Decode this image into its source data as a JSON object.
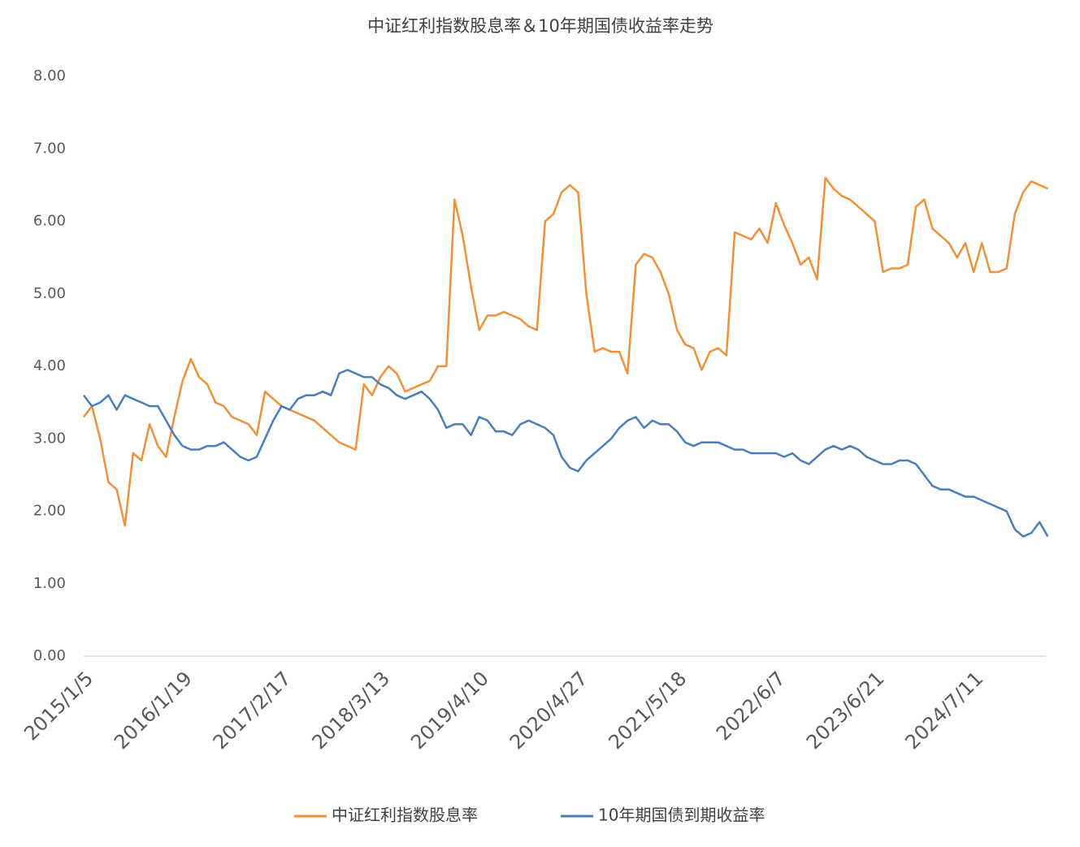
{
  "chart_data": {
    "type": "line",
    "title": "中证红利指数股息率＆10年期国债收益率走势",
    "categories": [
      "2015/1/5",
      null,
      null,
      null,
      null,
      null,
      null,
      null,
      null,
      null,
      null,
      null,
      "2016/1/19",
      null,
      null,
      null,
      null,
      null,
      null,
      null,
      null,
      null,
      null,
      null,
      "2017/2/17",
      null,
      null,
      null,
      null,
      null,
      null,
      null,
      null,
      null,
      null,
      null,
      "2018/3/13",
      null,
      null,
      null,
      null,
      null,
      null,
      null,
      null,
      null,
      null,
      null,
      "2019/4/10",
      null,
      null,
      null,
      null,
      null,
      null,
      null,
      null,
      null,
      null,
      null,
      "2020/4/27",
      null,
      null,
      null,
      null,
      null,
      null,
      null,
      null,
      null,
      null,
      null,
      "2021/5/18",
      null,
      null,
      null,
      null,
      null,
      null,
      null,
      null,
      null,
      null,
      null,
      "2022/6/7",
      null,
      null,
      null,
      null,
      null,
      null,
      null,
      null,
      null,
      null,
      null,
      "2023/6/21",
      null,
      null,
      null,
      null,
      null,
      null,
      null,
      null,
      null,
      null,
      null,
      "2024/7/11",
      null,
      null,
      null,
      null,
      null,
      null,
      null,
      null,
      null
    ],
    "series": [
      {
        "name": "中证红利指数股息率",
        "color": "#f0913a",
        "values": [
          3.3,
          3.45,
          3.0,
          2.4,
          2.3,
          1.8,
          2.8,
          2.7,
          3.2,
          2.9,
          2.75,
          3.3,
          3.8,
          4.1,
          3.85,
          3.75,
          3.5,
          3.45,
          3.3,
          3.25,
          3.2,
          3.05,
          3.65,
          3.55,
          3.45,
          3.4,
          3.35,
          3.3,
          3.25,
          3.15,
          3.05,
          2.95,
          2.9,
          2.85,
          3.75,
          3.6,
          3.85,
          4.0,
          3.9,
          3.65,
          3.7,
          3.75,
          3.8,
          4.0,
          4.0,
          6.3,
          5.8,
          5.1,
          4.5,
          4.7,
          4.7,
          4.75,
          4.7,
          4.65,
          4.55,
          4.5,
          6.0,
          6.1,
          6.4,
          6.5,
          6.4,
          5.0,
          4.2,
          4.25,
          4.2,
          4.2,
          3.9,
          5.4,
          5.55,
          5.5,
          5.3,
          5.0,
          4.5,
          4.3,
          4.25,
          3.95,
          4.2,
          4.25,
          4.15,
          5.85,
          5.8,
          5.75,
          5.9,
          5.7,
          6.25,
          5.95,
          5.7,
          5.4,
          5.5,
          5.2,
          6.6,
          6.45,
          6.35,
          6.3,
          6.2,
          6.1,
          6.0,
          5.3,
          5.35,
          5.35,
          5.4,
          6.2,
          6.3,
          5.9,
          5.8,
          5.7,
          5.5,
          5.7,
          5.3,
          5.7,
          5.3,
          5.3,
          5.35,
          6.1,
          6.4,
          6.55,
          6.5,
          6.45
        ]
      },
      {
        "name": "10年期国债到期收益率",
        "color": "#4a7ebb",
        "values": [
          3.6,
          3.45,
          3.5,
          3.6,
          3.4,
          3.6,
          3.55,
          3.5,
          3.45,
          3.45,
          3.25,
          3.05,
          2.9,
          2.85,
          2.85,
          2.9,
          2.9,
          2.95,
          2.85,
          2.75,
          2.7,
          2.75,
          3.0,
          3.25,
          3.45,
          3.4,
          3.55,
          3.6,
          3.6,
          3.65,
          3.6,
          3.9,
          3.95,
          3.9,
          3.85,
          3.85,
          3.75,
          3.7,
          3.6,
          3.55,
          3.6,
          3.65,
          3.55,
          3.4,
          3.15,
          3.2,
          3.2,
          3.05,
          3.3,
          3.25,
          3.1,
          3.1,
          3.05,
          3.2,
          3.25,
          3.2,
          3.15,
          3.05,
          2.75,
          2.6,
          2.55,
          2.7,
          2.8,
          2.9,
          3.0,
          3.15,
          3.25,
          3.3,
          3.15,
          3.25,
          3.2,
          3.2,
          3.1,
          2.95,
          2.9,
          2.95,
          2.95,
          2.95,
          2.9,
          2.85,
          2.85,
          2.8,
          2.8,
          2.8,
          2.8,
          2.75,
          2.8,
          2.7,
          2.65,
          2.75,
          2.85,
          2.9,
          2.85,
          2.9,
          2.85,
          2.75,
          2.7,
          2.65,
          2.65,
          2.7,
          2.7,
          2.65,
          2.5,
          2.35,
          2.3,
          2.3,
          2.25,
          2.2,
          2.2,
          2.15,
          2.1,
          2.05,
          2.0,
          1.75,
          1.65,
          1.7,
          1.85,
          1.65
        ]
      }
    ],
    "ylim": [
      0,
      8
    ],
    "yticks": [
      {
        "value": 0,
        "label": "0.00"
      },
      {
        "value": 1,
        "label": "1.00"
      },
      {
        "value": 2,
        "label": "2.00"
      },
      {
        "value": 3,
        "label": "3.00"
      },
      {
        "value": 4,
        "label": "4.00"
      },
      {
        "value": 5,
        "label": "5.00"
      },
      {
        "value": 6,
        "label": "6.00"
      },
      {
        "value": 7,
        "label": "7.00"
      },
      {
        "value": 8,
        "label": "8.00"
      }
    ],
    "legend": "bottom"
  }
}
